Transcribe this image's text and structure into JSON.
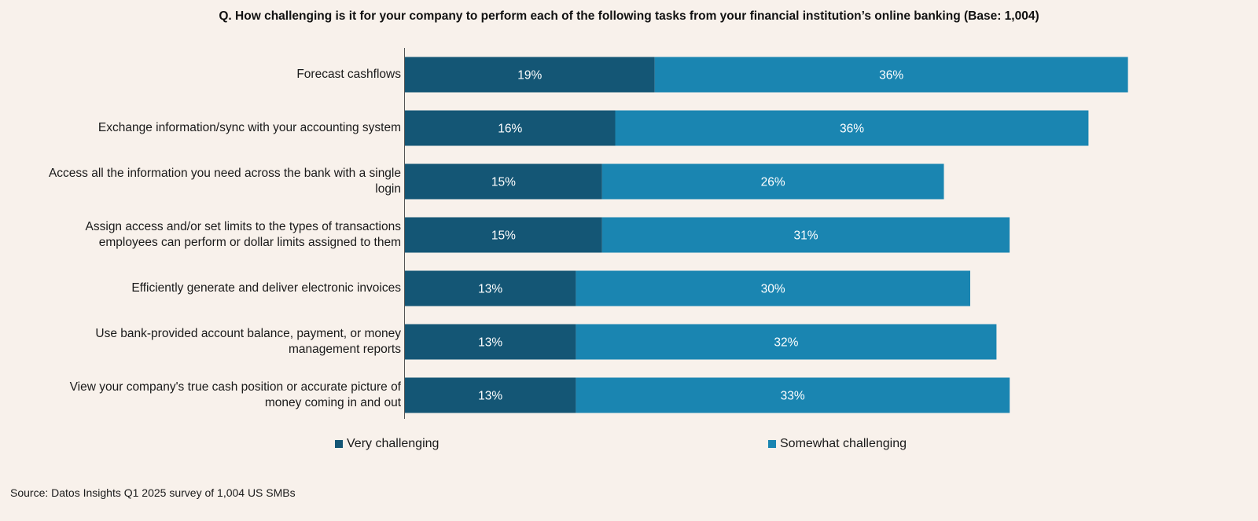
{
  "title": "Q. How challenging is it for your company to perform each of the following tasks from your financial institution’s online banking (Base: 1,004)",
  "source": "Source: Datos Insights Q1 2025 survey of 1,004 US SMBs",
  "colors": {
    "background": "#f8f1eb",
    "very": "#145675",
    "somewhat": "#1a85b1",
    "axis": "#555555",
    "bar_label": "#ffffff"
  },
  "chart_data": {
    "type": "bar",
    "orientation": "horizontal",
    "stacked": true,
    "title": "Q. How challenging is it for your company to perform each of the following tasks from your financial institution’s online banking (Base: 1,004)",
    "xlabel": "",
    "ylabel": "",
    "xlim": [
      0,
      60
    ],
    "grid": false,
    "legend_position": "bottom",
    "categories": [
      [
        "Forecast cashflows"
      ],
      [
        "Exchange information/sync with your accounting system"
      ],
      [
        "Access all the information you need across the bank with a single",
        "login"
      ],
      [
        "Assign access and/or set limits to the types of transactions",
        "employees can perform or dollar limits assigned to them"
      ],
      [
        "Efficiently generate and deliver electronic invoices"
      ],
      [
        "Use bank-provided account balance, payment, or money",
        "management reports"
      ],
      [
        "View your company's true cash position or accurate picture of",
        "money coming in and out"
      ]
    ],
    "series": [
      {
        "name": "Very challenging",
        "values": [
          19,
          16,
          15,
          15,
          13,
          13,
          13
        ],
        "labels": [
          "19%",
          "16%",
          "15%",
          "15%",
          "13%",
          "13%",
          "13%"
        ]
      },
      {
        "name": "Somewhat challenging",
        "values": [
          36,
          36,
          26,
          31,
          30,
          32,
          33
        ],
        "labels": [
          "36%",
          "36%",
          "26%",
          "31%",
          "30%",
          "32%",
          "33%"
        ]
      }
    ]
  }
}
